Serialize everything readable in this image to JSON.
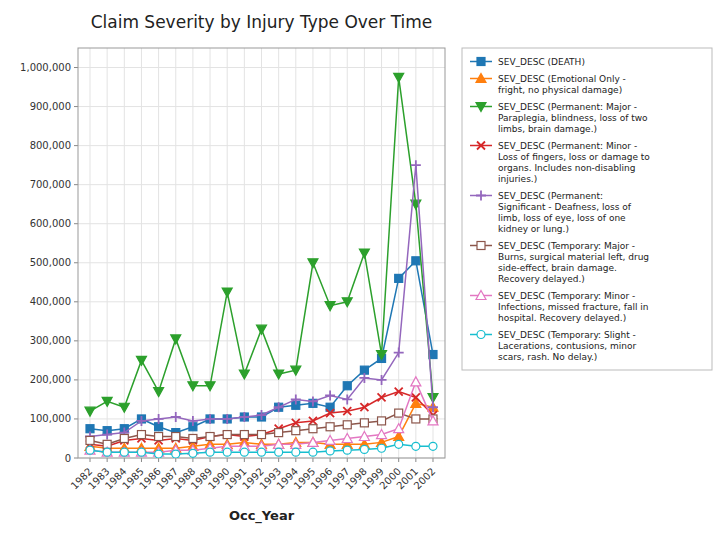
{
  "chart_data": {
    "type": "line",
    "title": "Claim Severity by Injury Type Over Time",
    "x_label": "Occ_Year",
    "x": [
      1982,
      1983,
      1984,
      1985,
      1986,
      1987,
      1988,
      1989,
      1990,
      1991,
      1992,
      1993,
      1994,
      1995,
      1996,
      1997,
      1998,
      1999,
      2000,
      2001,
      2002
    ],
    "xlim": [
      1981.3,
      2002.7
    ],
    "xticks": [
      1982,
      1983,
      1984,
      1985,
      1986,
      1987,
      1988,
      1989,
      1990,
      1991,
      1992,
      1993,
      1994,
      1995,
      1996,
      1997,
      1998,
      1999,
      2000,
      2001,
      2002
    ],
    "ylim": [
      0,
      1050000
    ],
    "yticks": [
      0,
      {
        "value": 100000,
        "label": "100,000"
      },
      {
        "value": 200000,
        "label": "200,000"
      },
      {
        "value": 300000,
        "label": "300,000"
      },
      {
        "value": 400000,
        "label": "400,000"
      },
      {
        "value": 500000,
        "label": "500,000"
      },
      {
        "value": 600000,
        "label": "600,000"
      },
      {
        "value": 700000,
        "label": "700,000"
      },
      {
        "value": 800000,
        "label": "800,000"
      },
      {
        "value": 900000,
        "label": "900,000"
      },
      {
        "value": 1000000,
        "label": "1,000,000"
      }
    ],
    "grid": true,
    "legend": "right",
    "series": [
      {
        "name": "SEV_DESC (DEATH)",
        "marker": "square",
        "line_style": "solid",
        "values": [
          75000,
          70000,
          75000,
          100000,
          80000,
          65000,
          80000,
          100000,
          100000,
          105000,
          105000,
          130000,
          135000,
          140000,
          130000,
          185000,
          225000,
          255000,
          460000,
          505000,
          265000
        ]
      },
      {
        "name": "SEV_DESC (Emotional Only -\nfright, no physical damage)",
        "marker": "triangle-up",
        "line_style": "solid",
        "values": [
          30000,
          25000,
          25000,
          25000,
          25000,
          25000,
          30000,
          35000,
          35000,
          40000,
          35000,
          35000,
          40000,
          40000,
          35000,
          35000,
          35000,
          40000,
          55000,
          140000,
          130000
        ]
      },
      {
        "name": "SEV_DESC (Permanent: Major -\nParaplegia, blindness, loss of two\nlimbs, brain damage.)",
        "marker": "triangle-down",
        "line_style": "solid",
        "values": [
          120000,
          145000,
          130000,
          250000,
          170000,
          305000,
          185000,
          185000,
          425000,
          215000,
          330000,
          215000,
          225000,
          500000,
          390000,
          400000,
          525000,
          265000,
          975000,
          650000,
          155000
        ]
      },
      {
        "name": "SEV_DESC (Permanent: Minor -\nLoss of fingers, loss or damage to\norgans.  Includes non-disabling\ninjuries.)",
        "marker": "x",
        "line_style": "solid",
        "values": [
          35000,
          30000,
          45000,
          50000,
          45000,
          50000,
          45000,
          55000,
          60000,
          55000,
          60000,
          75000,
          90000,
          95000,
          115000,
          120000,
          130000,
          155000,
          170000,
          155000,
          110000
        ]
      },
      {
        "name": "SEV_DESC (Permanent:\nSignificant - Deafness, loss of\nlimb, loss of eye, loss of one\nkidney or lung.)",
        "marker": "plus",
        "line_style": "solid",
        "values": [
          55000,
          60000,
          65000,
          95000,
          100000,
          105000,
          95000,
          100000,
          100000,
          105000,
          110000,
          130000,
          150000,
          145000,
          160000,
          150000,
          205000,
          200000,
          270000,
          750000,
          130000
        ]
      },
      {
        "name": "SEV_DESC (Temporary: Major -\nBurns, surgical material left, drug\nside-effect, brain damage.\nRecovery delayed.)",
        "marker": "square-open",
        "line_style": "solid",
        "values": [
          45000,
          35000,
          50000,
          60000,
          55000,
          55000,
          50000,
          55000,
          60000,
          60000,
          60000,
          65000,
          70000,
          75000,
          80000,
          85000,
          90000,
          95000,
          115000,
          100000,
          100000
        ]
      },
      {
        "name": "SEV_DESC (Temporary: Minor -\nInfections, missed fracture, fall in\nhospital. Recovery delayed.)",
        "marker": "triangle-up-open",
        "line_style": "solid",
        "values": [
          20000,
          15000,
          15000,
          15000,
          15000,
          20000,
          20000,
          25000,
          30000,
          30000,
          30000,
          35000,
          35000,
          40000,
          45000,
          50000,
          55000,
          60000,
          75000,
          195000,
          95000
        ]
      },
      {
        "name": "SEV_DESC (Temporary: Slight -\nLacerations, contusions, minor\nscars, rash.  No delay.)",
        "marker": "circle-open",
        "line_style": "solid",
        "values": [
          20000,
          15000,
          15000,
          15000,
          10000,
          10000,
          12000,
          15000,
          15000,
          15000,
          15000,
          15000,
          15000,
          15000,
          18000,
          20000,
          22000,
          25000,
          35000,
          30000,
          30000
        ]
      }
    ]
  }
}
